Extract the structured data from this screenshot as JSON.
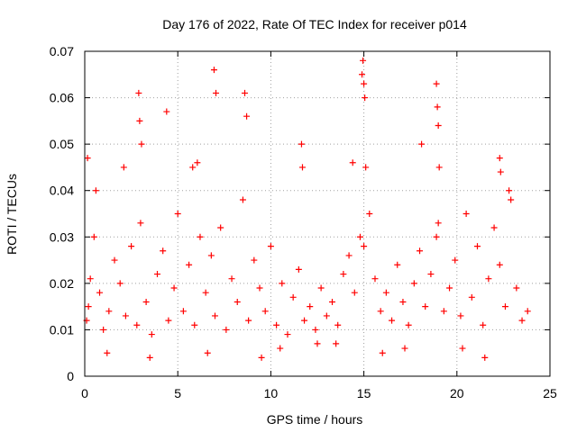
{
  "chart_data": {
    "type": "scatter",
    "title": "Day 176 of 2022, Rate Of TEC Index for receiver p014",
    "xlabel": "GPS time / hours",
    "ylabel": "ROTI / TECUs",
    "xlim": [
      0,
      25
    ],
    "ylim": [
      0,
      0.07
    ],
    "x_ticks": [
      0,
      5,
      10,
      15,
      20,
      25
    ],
    "x_tick_labels": [
      "0",
      "5",
      "10",
      "15",
      "20",
      "25"
    ],
    "y_ticks": [
      0,
      0.01,
      0.02,
      0.03,
      0.04,
      0.05,
      0.06,
      0.07
    ],
    "y_tick_labels": [
      "0",
      "0.01",
      "0.02",
      "0.03",
      "0.04",
      "0.05",
      "0.06",
      "0.07"
    ],
    "grid": true,
    "legend": "none",
    "marker": "plus",
    "color": "#ff0000",
    "series": [
      {
        "x": [
          0.1,
          0.2,
          0.3,
          0.5,
          0.8,
          1.0,
          1.3,
          1.6,
          1.9,
          2.2,
          2.5,
          2.8,
          3.0,
          3.3,
          3.6,
          3.9,
          4.2,
          4.5,
          4.8,
          5.0,
          5.3,
          5.6,
          5.9,
          6.2,
          6.5,
          6.8,
          7.0,
          7.3,
          7.6,
          7.9,
          8.2,
          8.5,
          8.8,
          9.1,
          9.4,
          9.7,
          10.0,
          10.3,
          10.6,
          10.9,
          11.2,
          11.5,
          11.8,
          12.1,
          12.4,
          12.7,
          13.0,
          13.3,
          13.6,
          13.9,
          14.2,
          14.5,
          14.8,
          15.0,
          15.3,
          15.6,
          15.9,
          16.2,
          16.5,
          16.8,
          17.1,
          17.4,
          17.7,
          18.0,
          18.3,
          18.6,
          18.9,
          19.0,
          19.3,
          19.6,
          19.9,
          20.2,
          20.5,
          20.8,
          21.1,
          21.4,
          21.7,
          22.0,
          22.3,
          22.6,
          22.9,
          23.2,
          23.5,
          23.8,
          0.15,
          0.6,
          2.1,
          2.9,
          2.95,
          3.05,
          4.4,
          5.8,
          6.05,
          6.95,
          7.05,
          8.6,
          8.7,
          11.65,
          11.7,
          14.4,
          14.9,
          14.95,
          15.0,
          15.05,
          15.1,
          18.1,
          18.9,
          18.95,
          19.0,
          19.05,
          22.3,
          22.35,
          22.8,
          12.5,
          16.0,
          20.3,
          9.5,
          10.5,
          1.2,
          3.5,
          6.6,
          13.5,
          17.2,
          21.5
        ],
        "y": [
          0.012,
          0.015,
          0.021,
          0.03,
          0.018,
          0.01,
          0.014,
          0.025,
          0.02,
          0.013,
          0.028,
          0.011,
          0.033,
          0.016,
          0.009,
          0.022,
          0.027,
          0.012,
          0.019,
          0.035,
          0.014,
          0.024,
          0.011,
          0.03,
          0.018,
          0.026,
          0.013,
          0.032,
          0.01,
          0.021,
          0.016,
          0.038,
          0.012,
          0.025,
          0.019,
          0.014,
          0.028,
          0.011,
          0.02,
          0.009,
          0.017,
          0.023,
          0.012,
          0.015,
          0.01,
          0.019,
          0.013,
          0.016,
          0.011,
          0.022,
          0.026,
          0.018,
          0.03,
          0.028,
          0.035,
          0.021,
          0.014,
          0.018,
          0.012,
          0.024,
          0.016,
          0.011,
          0.02,
          0.027,
          0.015,
          0.022,
          0.03,
          0.033,
          0.014,
          0.019,
          0.025,
          0.013,
          0.035,
          0.017,
          0.028,
          0.011,
          0.021,
          0.032,
          0.024,
          0.015,
          0.038,
          0.019,
          0.012,
          0.014,
          0.047,
          0.04,
          0.045,
          0.061,
          0.055,
          0.05,
          0.057,
          0.045,
          0.046,
          0.066,
          0.061,
          0.061,
          0.056,
          0.05,
          0.045,
          0.046,
          0.065,
          0.068,
          0.063,
          0.06,
          0.045,
          0.05,
          0.063,
          0.058,
          0.054,
          0.045,
          0.047,
          0.044,
          0.04,
          0.007,
          0.005,
          0.006,
          0.004,
          0.006,
          0.005,
          0.004,
          0.005,
          0.007,
          0.006,
          0.004
        ]
      }
    ]
  }
}
